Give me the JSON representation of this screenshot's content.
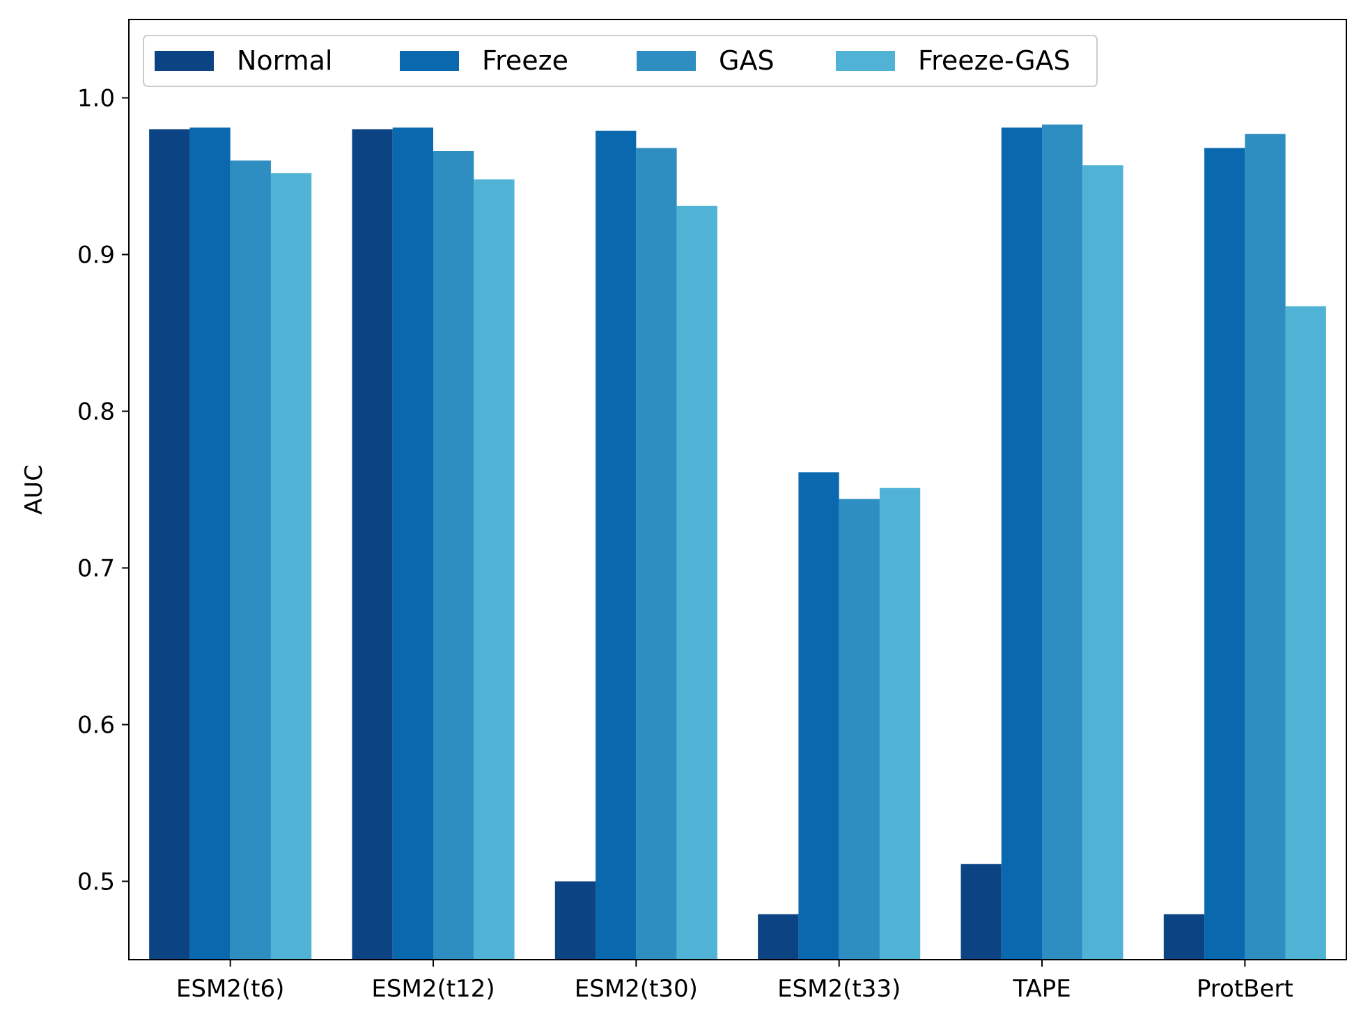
{
  "chart_data": {
    "type": "bar",
    "title": "",
    "xlabel": "",
    "ylabel": "AUC",
    "ylim": [
      0.45,
      1.05
    ],
    "yticks": [
      "0.5",
      "0.6",
      "0.7",
      "0.8",
      "0.9",
      "1.0"
    ],
    "grid": false,
    "legend_position": "top-left",
    "categories": [
      "ESM2(t6)",
      "ESM2(t12)",
      "ESM2(t30)",
      "ESM2(t33)",
      "TAPE",
      "ProtBert"
    ],
    "series": [
      {
        "name": "Normal",
        "color": "#0c4383",
        "values": [
          0.98,
          0.98,
          0.5,
          0.479,
          0.511,
          0.479
        ]
      },
      {
        "name": "Freeze",
        "color": "#0a69ae",
        "values": [
          0.981,
          0.981,
          0.979,
          0.761,
          0.981,
          0.968
        ]
      },
      {
        "name": "GAS",
        "color": "#2e8ec1",
        "values": [
          0.96,
          0.966,
          0.968,
          0.744,
          0.983,
          0.977
        ]
      },
      {
        "name": "Freeze-GAS",
        "color": "#50b3d5",
        "values": [
          0.952,
          0.948,
          0.931,
          0.751,
          0.957,
          0.867
        ]
      }
    ]
  }
}
